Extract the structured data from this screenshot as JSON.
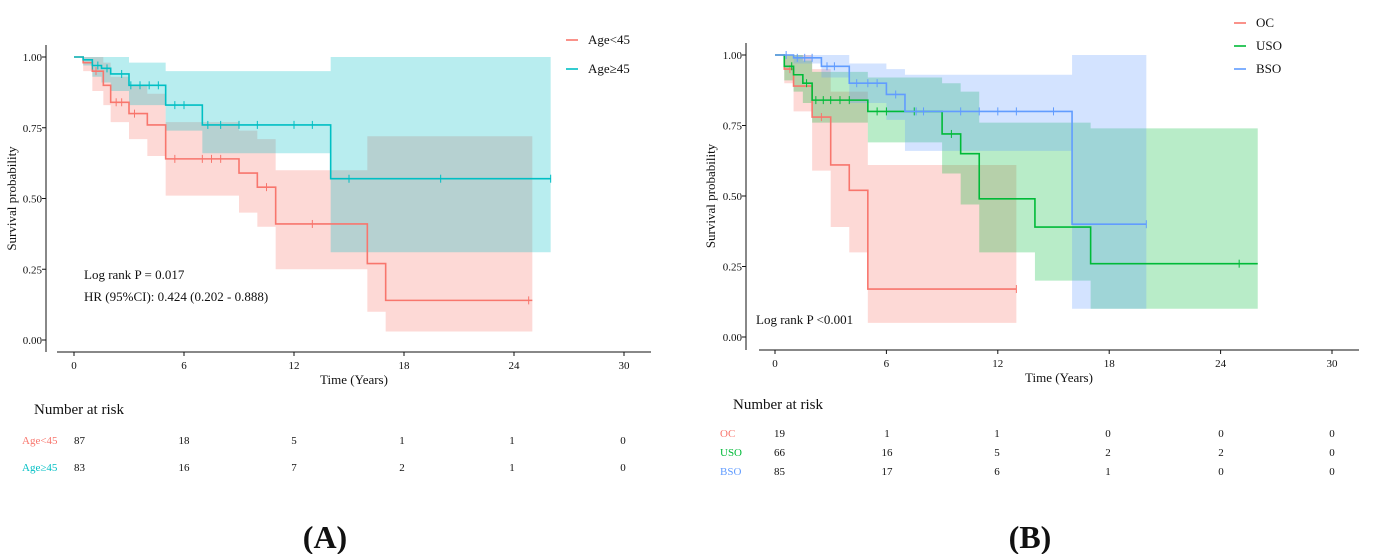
{
  "colors": {
    "oc": "#f8766d",
    "uso": "#00ba38",
    "bso": "#619cff",
    "age_lt": "#f8766d",
    "age_ge": "#00bfc4",
    "axis": "#111111"
  },
  "chart_data": [
    {
      "panel_label": "(A)",
      "type": "line",
      "subtype": "kaplan-meier",
      "xlabel": "Time (Years)",
      "ylabel": "Survival probability",
      "xlim": [
        0,
        30
      ],
      "ylim": [
        0,
        1
      ],
      "x_ticks": [
        "0",
        "6",
        "12",
        "18",
        "24",
        "30"
      ],
      "y_ticks": [
        "0.00",
        "0.25",
        "0.50",
        "0.75",
        "1.00"
      ],
      "legend_position": "top-right",
      "annotations": [
        "Log rank P = 0.017",
        "HR (95%CI): 0.424 (0.202 - 0.888)"
      ],
      "series": [
        {
          "name": "Age<45",
          "color_key": "age_lt",
          "x": [
            0,
            0.5,
            1.0,
            1.6,
            2.0,
            2.5,
            3.0,
            4.0,
            5.0,
            9.0,
            10.0,
            11.0,
            16.0,
            17.0,
            25.0
          ],
          "y": [
            1.0,
            0.98,
            0.95,
            0.9,
            0.84,
            0.84,
            0.8,
            0.76,
            0.64,
            0.59,
            0.54,
            0.41,
            0.27,
            0.14,
            0.14
          ],
          "ci_lower": [
            1.0,
            0.95,
            0.88,
            0.83,
            0.77,
            0.77,
            0.71,
            0.65,
            0.51,
            0.45,
            0.4,
            0.25,
            0.1,
            0.03,
            0.03
          ],
          "ci_upper": [
            1.0,
            1.0,
            1.0,
            0.98,
            0.93,
            0.93,
            0.9,
            0.87,
            0.77,
            0.74,
            0.71,
            0.6,
            0.72,
            0.72,
            0.72
          ],
          "censor_x": [
            1.2,
            2.3,
            2.6,
            3.3,
            5.5,
            7.0,
            7.5,
            8.0,
            10.5,
            13.0,
            24.8
          ]
        },
        {
          "name": "Age≥45",
          "color_key": "age_ge",
          "x": [
            0,
            0.5,
            1.0,
            1.5,
            2.0,
            3.0,
            5.0,
            7.0,
            14.0,
            26.0
          ],
          "y": [
            1.0,
            0.99,
            0.97,
            0.96,
            0.94,
            0.9,
            0.83,
            0.76,
            0.57,
            0.57
          ],
          "ci_lower": [
            1.0,
            0.97,
            0.93,
            0.91,
            0.88,
            0.83,
            0.74,
            0.66,
            0.31,
            0.31
          ],
          "ci_upper": [
            1.0,
            1.0,
            1.0,
            1.0,
            1.0,
            0.98,
            0.95,
            0.95,
            1.0,
            1.0
          ],
          "censor_x": [
            1.0,
            1.3,
            1.8,
            2.6,
            3.1,
            3.6,
            4.1,
            4.6,
            5.5,
            6.0,
            7.3,
            8.0,
            9.0,
            10.0,
            12.0,
            13.0,
            15.0,
            20.0,
            26.0
          ]
        }
      ],
      "risk_table": {
        "title": "Number at risk",
        "rows": [
          {
            "label": "Age<45",
            "color_key": "age_lt",
            "values": [
              "87",
              "18",
              "5",
              "1",
              "1",
              "0"
            ]
          },
          {
            "label": "Age≥45",
            "color_key": "age_ge",
            "values": [
              "83",
              "16",
              "7",
              "2",
              "1",
              "0"
            ]
          }
        ]
      }
    },
    {
      "panel_label": "(B)",
      "type": "line",
      "subtype": "kaplan-meier",
      "xlabel": "Time (Years)",
      "ylabel": "Survival probability",
      "xlim": [
        0,
        30
      ],
      "ylim": [
        0,
        1
      ],
      "x_ticks": [
        "0",
        "6",
        "12",
        "18",
        "24",
        "30"
      ],
      "y_ticks": [
        "0.00",
        "0.25",
        "0.50",
        "0.75",
        "1.00"
      ],
      "legend_position": "top-right",
      "annotations": [
        "Log rank P <0.001"
      ],
      "series": [
        {
          "name": "OC",
          "color_key": "oc",
          "x": [
            0,
            0.5,
            1.0,
            2.0,
            3.0,
            4.0,
            5.0,
            13.0
          ],
          "y": [
            1.0,
            0.95,
            0.89,
            0.78,
            0.61,
            0.52,
            0.17,
            0.17
          ],
          "ci_lower": [
            1.0,
            0.9,
            0.8,
            0.59,
            0.39,
            0.3,
            0.05,
            0.05
          ],
          "ci_upper": [
            1.0,
            1.0,
            1.0,
            0.95,
            0.87,
            0.87,
            0.61,
            0.61
          ],
          "censor_x": [
            0.8,
            2.5,
            13.0
          ]
        },
        {
          "name": "USO",
          "color_key": "uso",
          "x": [
            0,
            0.5,
            1.0,
            1.5,
            2.0,
            5.0,
            9.0,
            10.0,
            11.0,
            14.0,
            17.0,
            26.0
          ],
          "y": [
            1.0,
            0.96,
            0.93,
            0.9,
            0.84,
            0.8,
            0.72,
            0.65,
            0.49,
            0.39,
            0.26,
            0.26
          ],
          "ci_lower": [
            1.0,
            0.91,
            0.87,
            0.83,
            0.76,
            0.69,
            0.58,
            0.47,
            0.3,
            0.2,
            0.1,
            0.1
          ],
          "ci_upper": [
            1.0,
            1.0,
            1.0,
            0.98,
            0.94,
            0.92,
            0.9,
            0.87,
            0.76,
            0.76,
            0.74,
            0.74
          ],
          "censor_x": [
            0.9,
            1.7,
            2.2,
            2.6,
            3.0,
            3.5,
            4.0,
            5.5,
            6.0,
            7.5,
            9.5,
            25.0
          ]
        },
        {
          "name": "BSO",
          "color_key": "bso",
          "x": [
            0,
            1.0,
            2.5,
            4.0,
            6.0,
            7.0,
            16.0,
            20.0
          ],
          "y": [
            1.0,
            0.99,
            0.96,
            0.9,
            0.86,
            0.8,
            0.4,
            0.4
          ],
          "ci_lower": [
            1.0,
            0.97,
            0.92,
            0.83,
            0.77,
            0.66,
            0.1,
            0.1
          ],
          "ci_upper": [
            1.0,
            1.0,
            1.0,
            0.97,
            0.95,
            0.93,
            1.0,
            1.0
          ],
          "censor_x": [
            0.6,
            1.2,
            1.6,
            2.0,
            2.8,
            3.2,
            4.4,
            5.0,
            5.5,
            6.5,
            7.6,
            8.0,
            10.0,
            11.0,
            12.0,
            13.0,
            15.0,
            20.0
          ]
        }
      ],
      "risk_table": {
        "title": "Number at risk",
        "rows": [
          {
            "label": "OC",
            "color_key": "oc",
            "values": [
              "19",
              "1",
              "1",
              "0",
              "0",
              "0"
            ]
          },
          {
            "label": "USO",
            "color_key": "uso",
            "values": [
              "66",
              "16",
              "5",
              "2",
              "2",
              "0"
            ]
          },
          {
            "label": "BSO",
            "color_key": "bso",
            "values": [
              "85",
              "17",
              "6",
              "1",
              "0",
              "0"
            ]
          }
        ]
      }
    }
  ]
}
